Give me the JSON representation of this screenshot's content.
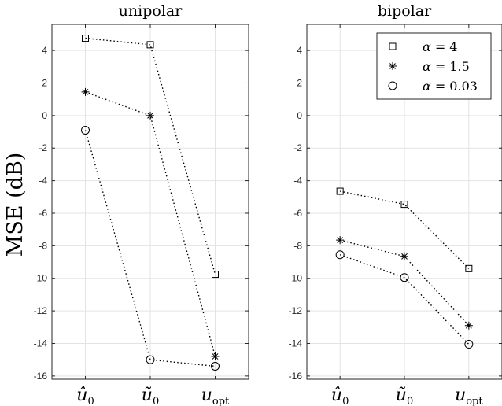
{
  "ylabel": "MSE (dB)",
  "legend": {
    "entries": [
      {
        "marker": "square",
        "symbol": "α",
        "value": "= 4"
      },
      {
        "marker": "asterisk",
        "symbol": "α",
        "value": "= 1.5"
      },
      {
        "marker": "circle",
        "symbol": "α",
        "value": "= 0.03"
      }
    ]
  },
  "chart_data": [
    {
      "type": "line",
      "title": "unipolar",
      "categories": [
        {
          "main": "û",
          "sub": "0"
        },
        {
          "main": "ũ",
          "sub": "0"
        },
        {
          "main": "u",
          "sub": "opt"
        }
      ],
      "ylim": [
        -16.2,
        5.6
      ],
      "yticks": [
        4,
        2,
        0,
        -2,
        -4,
        -6,
        -8,
        -10,
        -12,
        -14,
        -16
      ],
      "grid": true,
      "legend": "none",
      "series": [
        {
          "name": "α = 4",
          "marker": "square",
          "values": [
            4.75,
            4.35,
            -9.75
          ]
        },
        {
          "name": "α = 1.5",
          "marker": "asterisk",
          "values": [
            1.45,
            0.0,
            -14.8
          ]
        },
        {
          "name": "α = 0.03",
          "marker": "circle",
          "values": [
            -0.9,
            -15.0,
            -15.4
          ]
        }
      ]
    },
    {
      "type": "line",
      "title": "bipolar",
      "categories": [
        {
          "main": "û",
          "sub": "0"
        },
        {
          "main": "ũ",
          "sub": "0"
        },
        {
          "main": "u",
          "sub": "opt"
        }
      ],
      "ylim": [
        -16.2,
        5.6
      ],
      "yticks": [
        4,
        2,
        0,
        -2,
        -4,
        -6,
        -8,
        -10,
        -12,
        -14,
        -16
      ],
      "grid": true,
      "legend": "top-right",
      "series": [
        {
          "name": "α = 4",
          "marker": "square",
          "values": [
            -4.65,
            -5.45,
            -9.4
          ]
        },
        {
          "name": "α = 1.5",
          "marker": "asterisk",
          "values": [
            -7.65,
            -8.65,
            -12.9
          ]
        },
        {
          "name": "α = 0.03",
          "marker": "circle",
          "values": [
            -8.55,
            -9.95,
            -14.05
          ]
        }
      ]
    }
  ]
}
